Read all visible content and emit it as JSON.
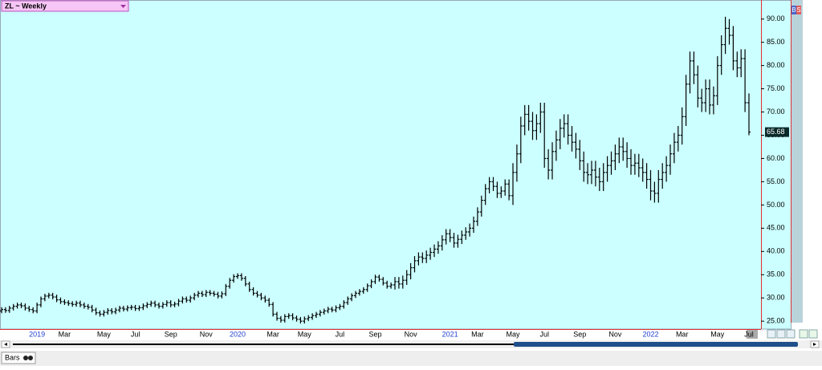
{
  "chart_data": {
    "type": "ohlc",
    "title": "ZL ~ Weekly",
    "color": "#000000",
    "categories": [
      null,
      null,
      null,
      null,
      null,
      null,
      null,
      null,
      null,
      "2019",
      null,
      null,
      null,
      null,
      null,
      null,
      "Mar",
      null,
      null,
      null,
      null,
      null,
      null,
      null,
      null,
      null,
      "May",
      null,
      null,
      null,
      null,
      null,
      null,
      null,
      "Jul",
      null,
      null,
      null,
      null,
      null,
      null,
      null,
      null,
      "Sep",
      null,
      null,
      null,
      null,
      null,
      null,
      null,
      null,
      "Nov",
      null,
      null,
      null,
      null,
      null,
      null,
      null,
      "2020",
      null,
      null,
      null,
      null,
      null,
      null,
      null,
      null,
      "Mar",
      null,
      null,
      null,
      null,
      null,
      null,
      null,
      "May",
      null,
      null,
      null,
      null,
      null,
      null,
      null,
      null,
      "Jul",
      null,
      null,
      null,
      null,
      null,
      null,
      null,
      null,
      "Sep",
      null,
      null,
      null,
      null,
      null,
      null,
      null,
      null,
      "Nov",
      null,
      null,
      null,
      null,
      null,
      null,
      null,
      null,
      null,
      "2021",
      null,
      null,
      null,
      null,
      null,
      null,
      "Mar",
      null,
      null,
      null,
      null,
      null,
      null,
      null,
      null,
      "May",
      null,
      null,
      null,
      null,
      null,
      null,
      null,
      "Jul",
      null,
      null,
      null,
      null,
      null,
      null,
      null,
      null,
      "Sep",
      null,
      null,
      null,
      null,
      null,
      null,
      null,
      null,
      "Nov",
      null,
      null,
      null,
      null,
      null,
      null,
      null,
      null,
      "2022",
      null,
      null,
      null,
      null,
      null,
      null,
      null,
      "Mar",
      null,
      null,
      null,
      null,
      null,
      null,
      null,
      null,
      "May",
      null,
      null,
      null,
      null,
      null,
      null,
      null,
      "Jul"
    ],
    "open": [
      27.2,
      27.5,
      27.3,
      27.8,
      28.2,
      28.5,
      28.3,
      27.8,
      27.5,
      27.2,
      28.5,
      29.8,
      30.4,
      30.6,
      30.2,
      29.6,
      29.2,
      29.0,
      28.8,
      28.6,
      28.9,
      28.5,
      28.2,
      28.0,
      27.4,
      26.8,
      26.5,
      26.9,
      27.3,
      27.0,
      27.4,
      27.8,
      27.6,
      27.9,
      28.0,
      27.7,
      27.9,
      28.3,
      28.6,
      28.9,
      28.5,
      28.2,
      28.6,
      29.0,
      28.5,
      28.7,
      29.3,
      29.8,
      29.5,
      30.0,
      30.6,
      31.0,
      30.7,
      31.2,
      31.0,
      30.8,
      30.4,
      30.9,
      32.5,
      33.8,
      34.6,
      34.8,
      34.2,
      33.0,
      31.8,
      31.0,
      30.6,
      30.0,
      29.5,
      28.6,
      26.5,
      25.6,
      25.2,
      26.0,
      26.2,
      25.7,
      25.4,
      25.0,
      25.5,
      25.8,
      26.2,
      26.5,
      26.9,
      27.2,
      27.6,
      27.4,
      27.9,
      28.2,
      29.0,
      29.8,
      30.5,
      31.0,
      31.4,
      31.8,
      32.6,
      33.5,
      34.5,
      34.0,
      33.2,
      32.5,
      32.8,
      33.5,
      33.0,
      33.8,
      35.0,
      36.5,
      38.0,
      38.8,
      38.5,
      39.2,
      39.8,
      40.5,
      41.2,
      42.5,
      43.8,
      43.0,
      41.8,
      42.6,
      43.5,
      44.2,
      45.0,
      46.5,
      48.5,
      51.0,
      53.5,
      55.0,
      54.0,
      52.5,
      53.0,
      54.5,
      52.0,
      57.0,
      61.0,
      67.0,
      69.5,
      68.0,
      66.0,
      67.5,
      70.0,
      60.0,
      57.5,
      61.5,
      64.0,
      66.5,
      67.5,
      65.0,
      63.5,
      62.0,
      59.5,
      57.0,
      56.5,
      57.5,
      56.0,
      55.0,
      57.0,
      58.5,
      59.5,
      61.0,
      62.5,
      61.5,
      60.0,
      58.5,
      59.0,
      58.0,
      57.0,
      55.5,
      53.0,
      52.5,
      55.5,
      57.0,
      58.5,
      61.0,
      63.5,
      65.0,
      69.0,
      76.0,
      81.0,
      78.0,
      73.0,
      72.0,
      75.0,
      71.5,
      73.5,
      80.0,
      84.5,
      88.0,
      86.5,
      81.0,
      79.5,
      81.5,
      72.0
    ],
    "high": [
      28.0,
      28.0,
      28.3,
      28.7,
      29.0,
      29.0,
      28.8,
      28.3,
      28.0,
      29.0,
      30.3,
      30.9,
      31.1,
      31.1,
      30.7,
      30.1,
      29.7,
      29.5,
      29.3,
      29.4,
      29.4,
      29.0,
      28.7,
      28.5,
      27.9,
      27.3,
      27.4,
      27.8,
      27.8,
      27.9,
      28.3,
      28.3,
      28.4,
      28.5,
      28.5,
      28.4,
      28.8,
      29.1,
      29.4,
      29.4,
      29.0,
      29.1,
      29.5,
      29.5,
      29.2,
      29.8,
      30.3,
      30.3,
      30.5,
      31.1,
      31.5,
      31.5,
      31.7,
      31.7,
      31.5,
      31.3,
      31.4,
      33.0,
      34.3,
      35.1,
      35.3,
      35.3,
      34.7,
      33.5,
      32.3,
      31.5,
      31.1,
      30.5,
      30.0,
      29.1,
      27.0,
      26.1,
      26.5,
      26.7,
      26.7,
      26.2,
      25.9,
      26.0,
      26.3,
      26.7,
      27.0,
      27.4,
      27.7,
      28.1,
      28.1,
      28.4,
      28.7,
      29.5,
      30.3,
      31.0,
      31.5,
      31.9,
      32.3,
      33.1,
      34.0,
      35.0,
      35.0,
      34.5,
      33.7,
      33.3,
      34.5,
      34.5,
      34.8,
      36.0,
      37.5,
      39.0,
      39.8,
      39.8,
      40.2,
      40.8,
      41.5,
      42.2,
      43.5,
      44.8,
      44.8,
      44.0,
      43.6,
      44.5,
      45.2,
      46.0,
      47.5,
      49.5,
      52.0,
      54.5,
      56.0,
      56.0,
      55.0,
      54.0,
      55.5,
      55.5,
      59.0,
      63.0,
      69.0,
      71.5,
      71.5,
      70.0,
      69.5,
      72.0,
      72.0,
      62.0,
      63.5,
      66.0,
      68.5,
      69.5,
      69.5,
      67.0,
      65.5,
      64.0,
      61.5,
      59.0,
      59.5,
      59.5,
      58.0,
      59.0,
      60.5,
      61.5,
      63.0,
      64.5,
      64.5,
      63.5,
      62.0,
      61.0,
      61.0,
      60.0,
      59.0,
      57.5,
      55.0,
      57.5,
      59.0,
      60.5,
      63.0,
      65.5,
      67.0,
      71.0,
      78.0,
      83.0,
      83.0,
      80.0,
      75.0,
      77.0,
      77.0,
      75.5,
      82.0,
      86.5,
      90.5,
      90.0,
      88.5,
      83.0,
      83.5,
      83.5,
      74.0
    ],
    "low": [
      26.7,
      26.8,
      26.8,
      27.3,
      27.7,
      27.8,
      27.3,
      27.0,
      26.7,
      26.7,
      28.0,
      29.3,
      29.9,
      29.7,
      29.1,
      28.7,
      28.5,
      28.3,
      28.1,
      28.1,
      28.0,
      27.7,
      27.5,
      26.9,
      26.3,
      26.0,
      26.0,
      26.4,
      26.5,
      26.5,
      26.9,
      27.1,
      27.1,
      27.4,
      27.2,
      27.2,
      27.4,
      27.8,
      28.1,
      28.0,
      27.7,
      27.7,
      28.1,
      28.0,
      28.0,
      28.2,
      28.8,
      29.0,
      29.0,
      29.5,
      30.1,
      30.2,
      30.2,
      30.5,
      30.3,
      29.9,
      29.9,
      30.4,
      32.0,
      33.3,
      34.1,
      33.7,
      32.5,
      31.3,
      30.5,
      30.1,
      29.5,
      29.0,
      28.1,
      26.0,
      25.1,
      24.7,
      24.7,
      25.5,
      25.2,
      24.9,
      24.5,
      24.5,
      25.0,
      25.3,
      25.7,
      26.0,
      26.4,
      26.7,
      26.9,
      26.9,
      27.4,
      27.7,
      28.5,
      29.3,
      30.0,
      30.5,
      30.9,
      31.3,
      32.1,
      33.0,
      33.5,
      32.7,
      32.0,
      32.0,
      31.8,
      32.0,
      32.0,
      32.8,
      34.0,
      35.5,
      37.0,
      37.5,
      37.5,
      38.2,
      38.8,
      39.5,
      40.2,
      41.5,
      42.0,
      40.8,
      40.8,
      41.6,
      42.5,
      43.2,
      44.0,
      45.5,
      47.5,
      50.0,
      52.5,
      53.0,
      51.5,
      51.5,
      52.0,
      51.0,
      50.0,
      55.0,
      59.0,
      65.0,
      66.0,
      64.0,
      64.0,
      65.5,
      58.0,
      55.5,
      55.5,
      59.5,
      62.0,
      64.5,
      63.0,
      61.5,
      60.0,
      57.5,
      55.0,
      54.5,
      54.5,
      54.0,
      53.0,
      53.0,
      55.0,
      56.5,
      57.5,
      59.0,
      59.5,
      58.0,
      56.5,
      56.5,
      56.0,
      55.0,
      53.5,
      51.0,
      50.5,
      50.5,
      53.5,
      55.0,
      56.5,
      59.0,
      61.5,
      63.0,
      67.0,
      74.0,
      76.0,
      71.0,
      70.0,
      70.0,
      69.5,
      69.5,
      71.5,
      78.0,
      82.5,
      84.5,
      79.0,
      77.5,
      77.5,
      70.0,
      65.0
    ],
    "close": [
      27.5,
      27.3,
      27.8,
      28.2,
      28.5,
      28.3,
      27.8,
      27.5,
      27.2,
      28.5,
      29.8,
      30.4,
      30.6,
      30.2,
      29.6,
      29.2,
      29.0,
      28.8,
      28.6,
      28.9,
      28.5,
      28.2,
      28.0,
      27.4,
      26.8,
      26.5,
      26.9,
      27.3,
      27.0,
      27.4,
      27.8,
      27.6,
      27.9,
      28.0,
      27.7,
      27.9,
      28.3,
      28.6,
      28.9,
      28.5,
      28.2,
      28.6,
      29.0,
      28.5,
      28.7,
      29.3,
      29.8,
      29.5,
      30.0,
      30.6,
      31.0,
      30.7,
      31.2,
      31.0,
      30.8,
      30.4,
      30.9,
      32.5,
      33.8,
      34.6,
      34.8,
      34.2,
      33.0,
      31.8,
      31.0,
      30.6,
      30.0,
      29.5,
      28.6,
      26.5,
      25.6,
      25.2,
      26.0,
      26.2,
      25.7,
      25.4,
      25.0,
      25.5,
      25.8,
      26.2,
      26.5,
      26.9,
      27.2,
      27.6,
      27.4,
      27.9,
      28.2,
      29.0,
      29.8,
      30.5,
      31.0,
      31.4,
      31.8,
      32.6,
      33.5,
      34.5,
      34.0,
      33.2,
      32.5,
      32.8,
      33.5,
      33.0,
      33.8,
      35.0,
      36.5,
      38.0,
      38.8,
      38.5,
      39.2,
      39.8,
      40.5,
      41.2,
      42.5,
      43.8,
      43.0,
      41.8,
      42.6,
      43.5,
      44.2,
      45.0,
      46.5,
      48.5,
      51.0,
      53.5,
      55.0,
      54.0,
      52.5,
      53.0,
      54.5,
      52.0,
      57.0,
      61.0,
      67.0,
      69.5,
      68.0,
      66.0,
      67.5,
      70.0,
      60.0,
      57.5,
      61.5,
      64.0,
      66.5,
      67.5,
      65.0,
      63.5,
      62.0,
      59.5,
      57.0,
      56.5,
      57.5,
      56.0,
      55.0,
      57.0,
      58.5,
      59.5,
      61.0,
      62.5,
      61.5,
      60.0,
      58.5,
      59.0,
      58.0,
      57.0,
      55.5,
      53.0,
      52.5,
      55.5,
      57.0,
      58.5,
      61.0,
      63.5,
      65.0,
      69.0,
      76.0,
      81.0,
      78.0,
      73.0,
      72.0,
      75.0,
      71.5,
      73.5,
      80.0,
      84.5,
      88.0,
      86.5,
      81.0,
      79.5,
      81.5,
      72.0,
      65.68
    ],
    "ylim": [
      23.3,
      94.1
    ],
    "yticks": [
      {
        "value": 25,
        "label": "25.00"
      },
      {
        "value": 30,
        "label": "30.00"
      },
      {
        "value": 35,
        "label": "35.00"
      },
      {
        "value": 40,
        "label": "40.00"
      },
      {
        "value": 45,
        "label": "45.00"
      },
      {
        "value": 50,
        "label": "50.00"
      },
      {
        "value": 55,
        "label": "55.00"
      },
      {
        "value": 60,
        "label": "60.00"
      },
      {
        "value": 65,
        "label": "65.00"
      },
      {
        "value": 70,
        "label": "70.00"
      },
      {
        "value": 75,
        "label": "75.00"
      },
      {
        "value": 80,
        "label": "80.00"
      },
      {
        "value": 85,
        "label": "85.00"
      },
      {
        "value": 90,
        "label": "90.00"
      }
    ],
    "grid": false
  },
  "ui": {
    "tab": "Bars",
    "buttons": [
      "B",
      "S"
    ]
  }
}
